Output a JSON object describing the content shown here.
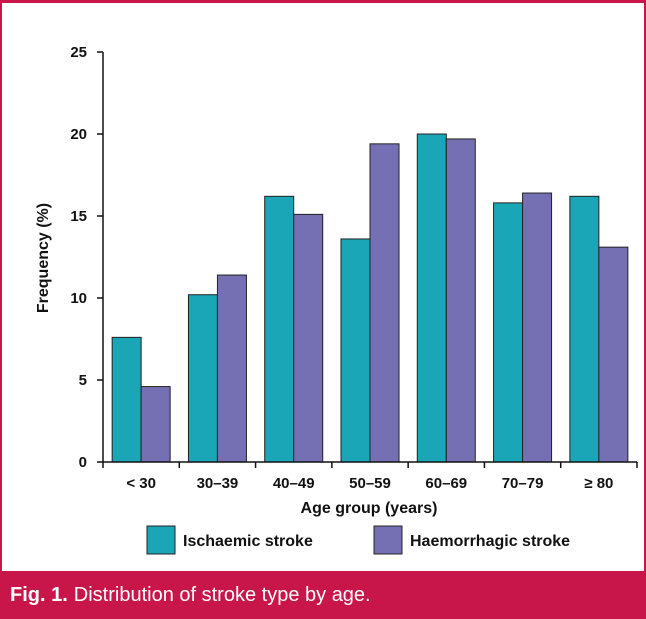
{
  "chart_data": {
    "type": "bar",
    "categories": [
      "< 30",
      "30–39",
      "40–49",
      "50–59",
      "60–69",
      "70–79",
      "≥ 80"
    ],
    "series": [
      {
        "name": "Ischaemic stroke",
        "color": "#1aa6b7",
        "values": [
          7.6,
          10.2,
          16.2,
          13.6,
          20.0,
          15.8,
          16.2
        ]
      },
      {
        "name": "Haemorrhagic stroke",
        "color": "#7570b3",
        "values": [
          4.6,
          11.4,
          15.1,
          19.4,
          19.7,
          16.4,
          13.1
        ]
      }
    ],
    "ylabel": "Frequency (%)",
    "xlabel": "Age group (years)",
    "ylim": [
      0,
      25
    ],
    "yticks": [
      0,
      5,
      10,
      15,
      20,
      25
    ],
    "grid": false,
    "legend": "bottom"
  },
  "caption": {
    "label": "Fig. 1.",
    "text": "Distribution of stroke type by age."
  },
  "colors": {
    "frame": "#c8164a"
  }
}
